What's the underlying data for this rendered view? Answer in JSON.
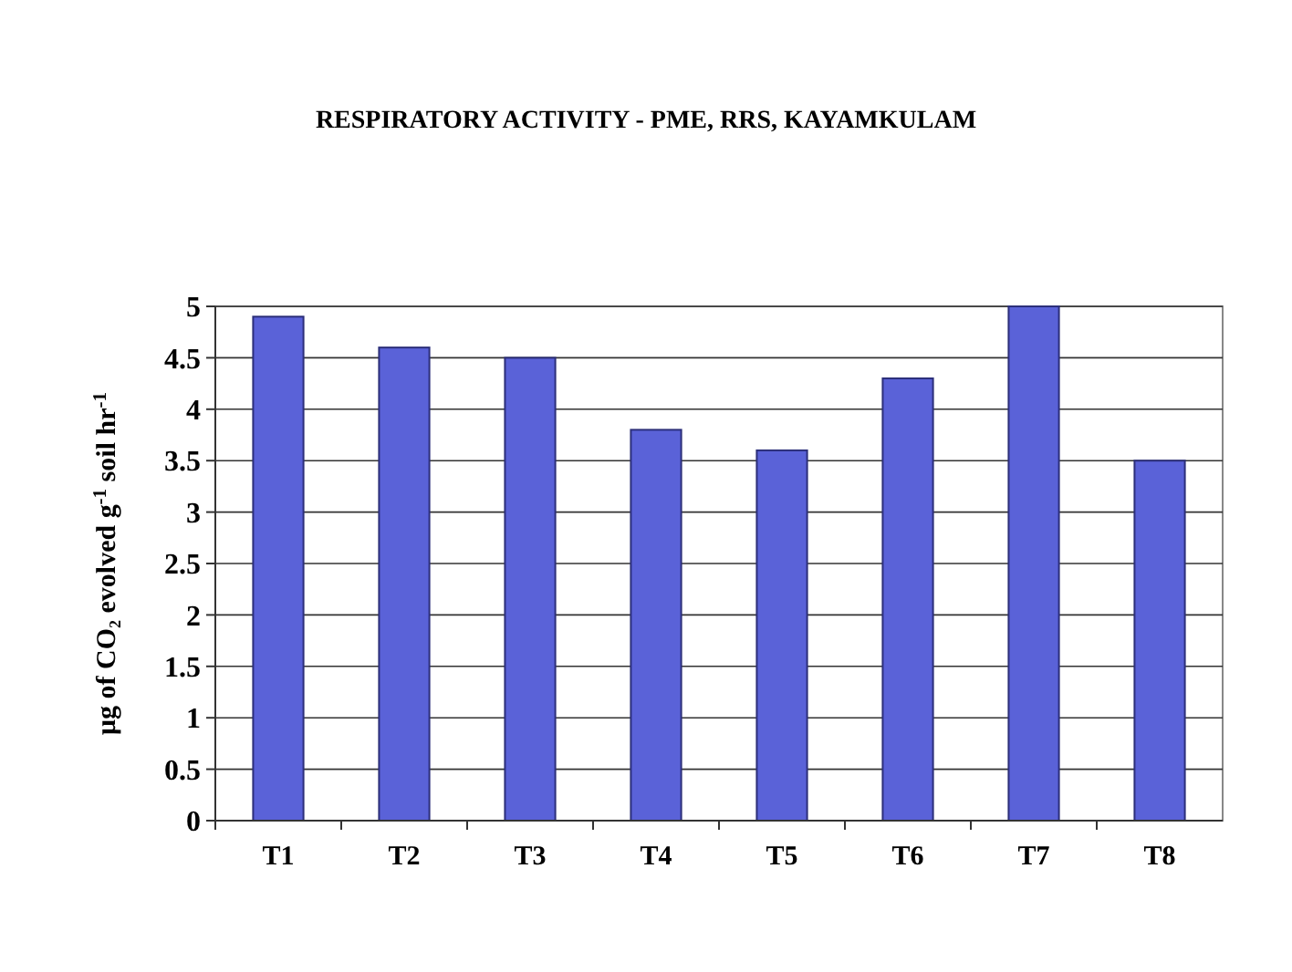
{
  "chart_data": {
    "type": "bar",
    "title": "RESPIRATORY ACTIVITY - PME, RRS, KAYAMKULAM",
    "ylabel": "μg of CO₂ evolved g$^{-1}$ soil hr$^{-1}$",
    "categories": [
      "T1",
      "T2",
      "T3",
      "T4",
      "T5",
      "T6",
      "T7",
      "T8"
    ],
    "values": [
      4.9,
      4.6,
      4.5,
      3.8,
      3.6,
      4.3,
      5.0,
      3.5
    ],
    "color": "#5a62d8",
    "ylim": [
      0,
      5
    ],
    "yticks": [
      0,
      {
        "value": 0.5,
        "label": "0.5"
      },
      1,
      {
        "value": 1.5,
        "label": "1.5"
      },
      2,
      {
        "value": 2.5,
        "label": "2.5"
      },
      3,
      {
        "value": 3.5,
        "label": "3.5"
      },
      4,
      {
        "value": 4.5,
        "label": "4.5"
      },
      5
    ],
    "grid": "y"
  }
}
